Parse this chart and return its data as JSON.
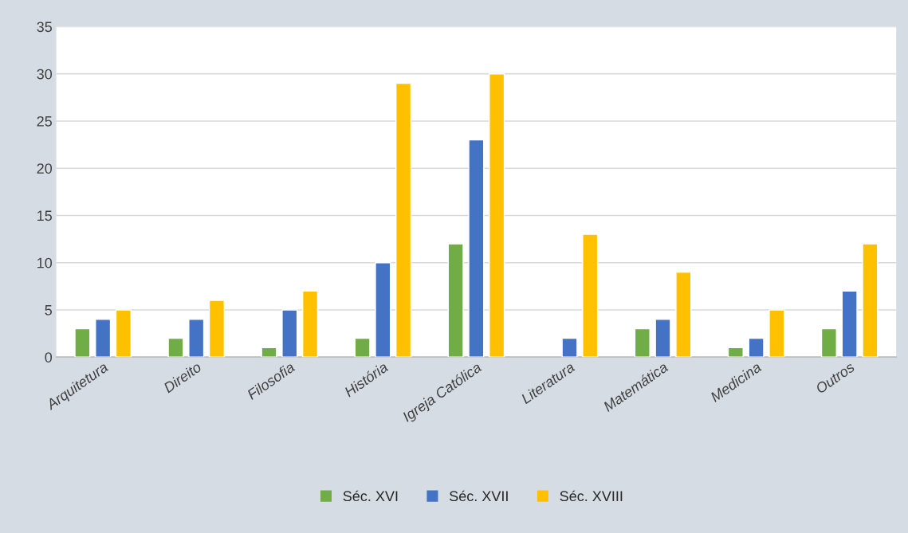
{
  "chart_data": {
    "type": "bar",
    "categories": [
      "Arquitetura",
      "Direito",
      "Filosofia",
      "História",
      "Igreja Católica",
      "Literatura",
      "Matemática",
      "Medicina",
      "Outros"
    ],
    "series": [
      {
        "name": "Séc. XVI",
        "color": "#70ad47",
        "values": [
          3,
          2,
          1,
          2,
          12,
          null,
          3,
          1,
          3
        ]
      },
      {
        "name": "Séc. XVII",
        "color": "#4472c4",
        "values": [
          4,
          4,
          5,
          10,
          23,
          2,
          4,
          2,
          7
        ]
      },
      {
        "name": "Séc. XVIII",
        "color": "#ffc000",
        "values": [
          5,
          6,
          7,
          29,
          30,
          13,
          9,
          5,
          12
        ]
      }
    ],
    "ylim": [
      0,
      35
    ],
    "yticks": [
      0,
      5,
      10,
      15,
      20,
      25,
      30,
      35
    ],
    "grid": "y",
    "legend": "bottom"
  }
}
